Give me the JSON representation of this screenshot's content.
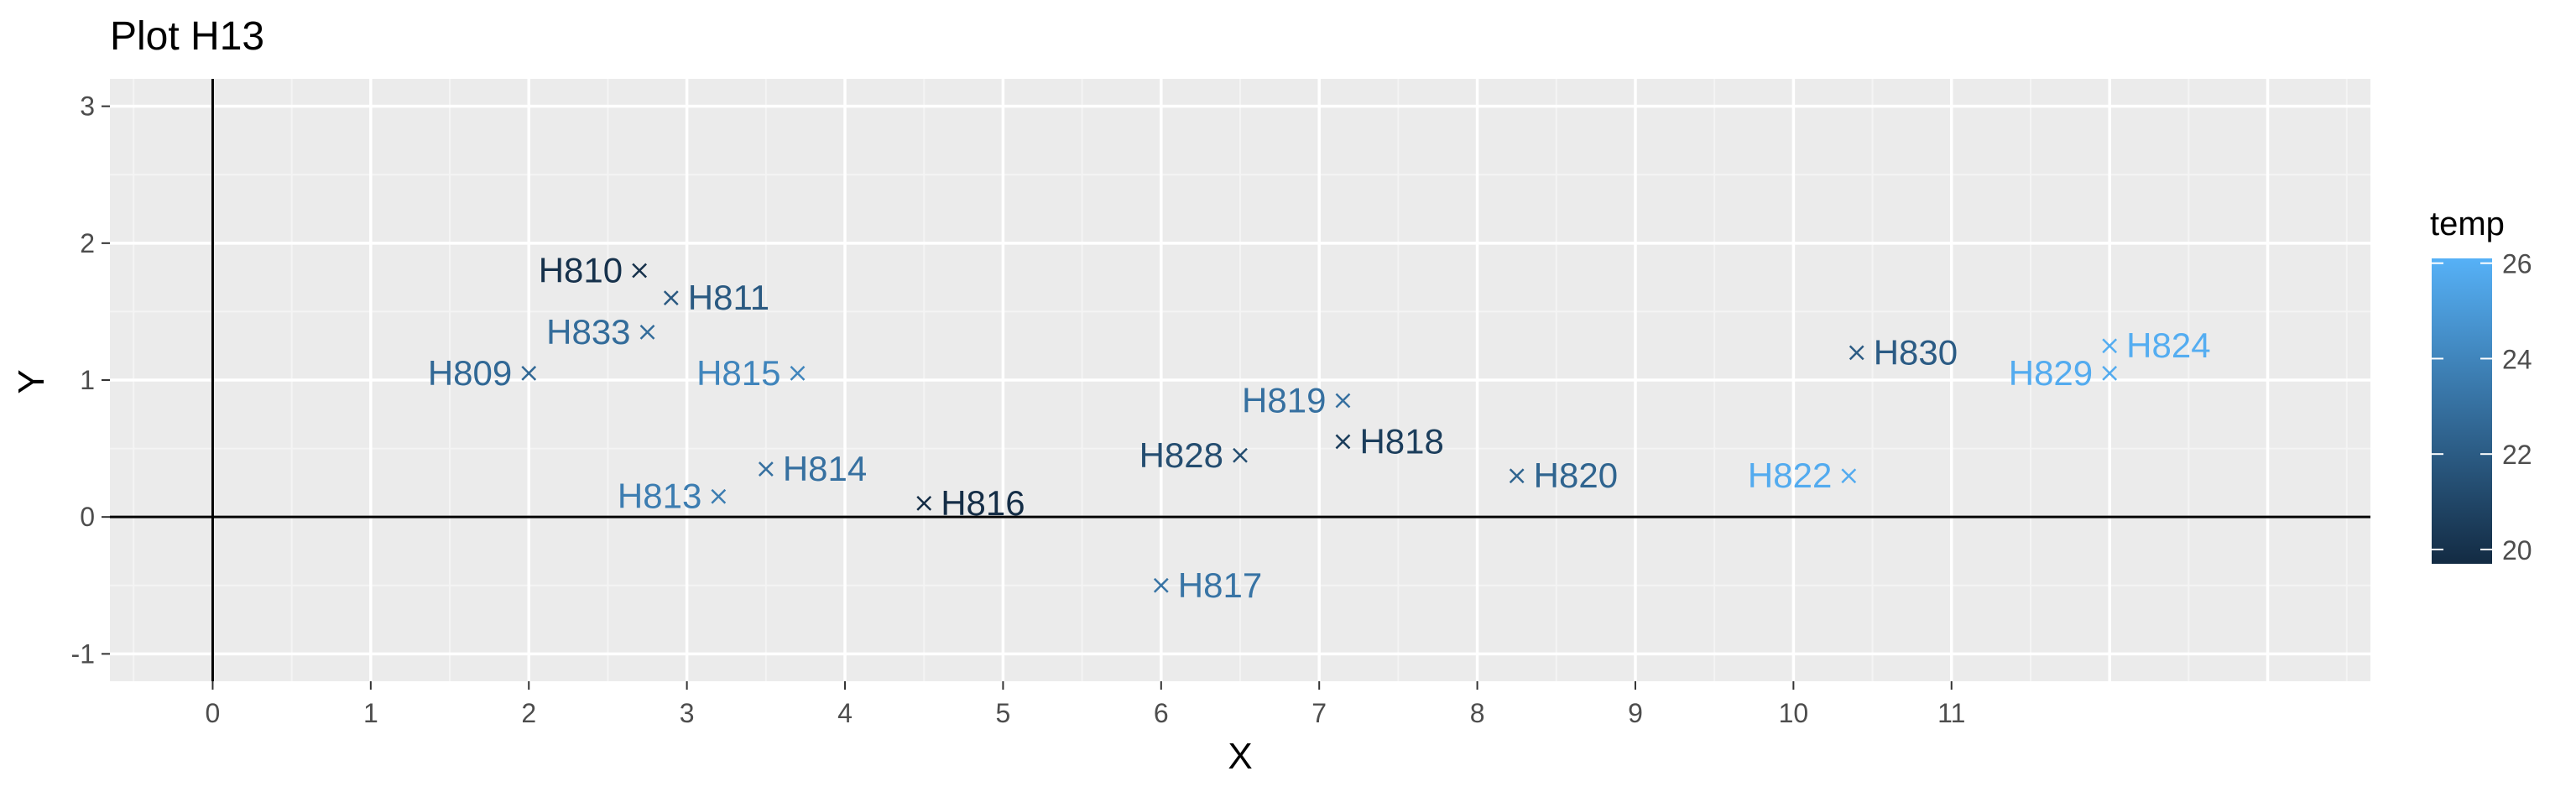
{
  "chart_data": {
    "type": "scatter",
    "title": "Plot H13",
    "xlabel": "X",
    "ylabel": "Y",
    "xlim": [
      -0.65,
      13.65
    ],
    "ylim": [
      -1.2,
      3.2
    ],
    "x_ticks": [
      0,
      1,
      2,
      3,
      4,
      5,
      6,
      7,
      8,
      9,
      10,
      11
    ],
    "x_tick_labels": [
      "0",
      "1",
      "2",
      "3",
      "4",
      "5",
      "6",
      "7",
      "8",
      "9",
      "10",
      "11"
    ],
    "y_ticks": [
      -1,
      0,
      1,
      2,
      3
    ],
    "y_tick_labels": [
      "-1",
      "0",
      "1",
      "2",
      "3"
    ],
    "grid": true,
    "reference_lines": {
      "x": 0,
      "y": 0
    },
    "marker": "x",
    "colorbar": {
      "title": "temp",
      "min": 19.7,
      "max": 26.1,
      "ticks": [
        20,
        22,
        24,
        26
      ],
      "tick_labels": [
        "20",
        "22",
        "24",
        "26"
      ],
      "low_color": "#132B43",
      "high_color": "#56B1F7",
      "placement": "right"
    },
    "points": [
      {
        "label": "H809",
        "x": 2.0,
        "y": 1.05,
        "temp": 22.6,
        "label_side": "left"
      },
      {
        "label": "H810",
        "x": 2.7,
        "y": 1.8,
        "temp": 20.0,
        "label_side": "left"
      },
      {
        "label": "H811",
        "x": 2.9,
        "y": 1.6,
        "temp": 21.9,
        "label_side": "right"
      },
      {
        "label": "H813",
        "x": 3.2,
        "y": 0.15,
        "temp": 23.6,
        "label_side": "left"
      },
      {
        "label": "H814",
        "x": 3.5,
        "y": 0.35,
        "temp": 23.0,
        "label_side": "right"
      },
      {
        "label": "H815",
        "x": 3.7,
        "y": 1.05,
        "temp": 24.0,
        "label_side": "left"
      },
      {
        "label": "H816",
        "x": 4.5,
        "y": 0.1,
        "temp": 19.8,
        "label_side": "right"
      },
      {
        "label": "H817",
        "x": 6.0,
        "y": -0.5,
        "temp": 23.2,
        "label_side": "right"
      },
      {
        "label": "H818",
        "x": 7.15,
        "y": 0.55,
        "temp": 20.6,
        "label_side": "right"
      },
      {
        "label": "H819",
        "x": 7.15,
        "y": 0.85,
        "temp": 23.0,
        "label_side": "left"
      },
      {
        "label": "H820",
        "x": 8.25,
        "y": 0.3,
        "temp": 22.4,
        "label_side": "right"
      },
      {
        "label": "H822",
        "x": 10.35,
        "y": 0.3,
        "temp": 25.8,
        "label_side": "left"
      },
      {
        "label": "H824",
        "x": 12.0,
        "y": 1.25,
        "temp": 25.9,
        "label_side": "right"
      },
      {
        "label": "H828",
        "x": 6.5,
        "y": 0.45,
        "temp": 21.3,
        "label_side": "left"
      },
      {
        "label": "H829",
        "x": 12.0,
        "y": 1.05,
        "temp": 25.8,
        "label_side": "left"
      },
      {
        "label": "H830",
        "x": 10.4,
        "y": 1.2,
        "temp": 22.0,
        "label_side": "right"
      },
      {
        "label": "H833",
        "x": 2.75,
        "y": 1.35,
        "temp": 22.8,
        "label_side": "left"
      }
    ]
  }
}
